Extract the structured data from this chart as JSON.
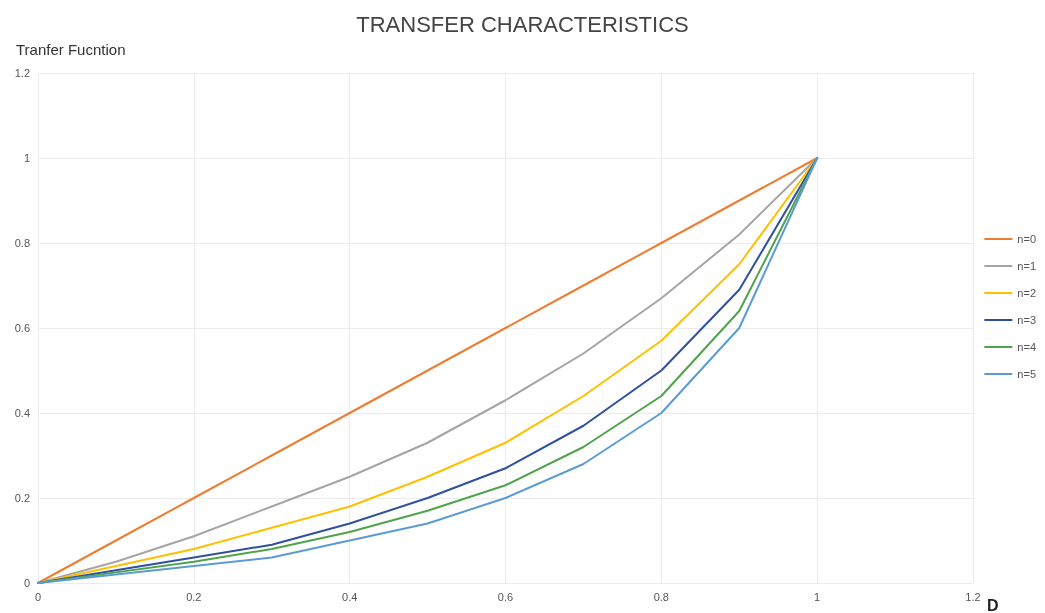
{
  "chart_data": {
    "type": "line",
    "title": "TRANSFER CHARACTERISTICS",
    "xlabel": "D",
    "ylabel": "Tranfer Fucntion",
    "x": [
      0,
      0.1,
      0.2,
      0.3,
      0.4,
      0.5,
      0.6,
      0.7,
      0.8,
      0.9,
      1
    ],
    "series": [
      {
        "name": "n=0",
        "color": "#ed7d31",
        "values": [
          0,
          0.1,
          0.2,
          0.3,
          0.4,
          0.5,
          0.6,
          0.7,
          0.8,
          0.9,
          1
        ]
      },
      {
        "name": "n=1",
        "color": "#a5a5a5",
        "values": [
          0,
          0.05,
          0.11,
          0.18,
          0.25,
          0.33,
          0.43,
          0.54,
          0.67,
          0.82,
          1
        ]
      },
      {
        "name": "n=2",
        "color": "#ffc000",
        "values": [
          0,
          0.04,
          0.08,
          0.13,
          0.18,
          0.25,
          0.33,
          0.44,
          0.57,
          0.75,
          1
        ]
      },
      {
        "name": "n=3",
        "color": "#2e50a0",
        "values": [
          0,
          0.03,
          0.06,
          0.09,
          0.14,
          0.2,
          0.27,
          0.37,
          0.5,
          0.69,
          1
        ]
      },
      {
        "name": "n=4",
        "color": "#4fa34a",
        "values": [
          0,
          0.025,
          0.05,
          0.08,
          0.12,
          0.17,
          0.23,
          0.32,
          0.44,
          0.64,
          1
        ]
      },
      {
        "name": "n=5",
        "color": "#5b9bd5",
        "values": [
          0,
          0.02,
          0.04,
          0.06,
          0.1,
          0.14,
          0.2,
          0.28,
          0.4,
          0.6,
          1
        ]
      }
    ],
    "xlim": [
      0,
      1.2
    ],
    "xticks": [
      0,
      0.2,
      0.4,
      0.6,
      0.8,
      1,
      1.2
    ],
    "ylim": [
      0,
      1.2
    ],
    "yticks": [
      0,
      0.2,
      0.4,
      0.6,
      0.8,
      1,
      1.2
    ],
    "grid": true,
    "legend": "right",
    "marker": "none",
    "line_style": "solid"
  }
}
